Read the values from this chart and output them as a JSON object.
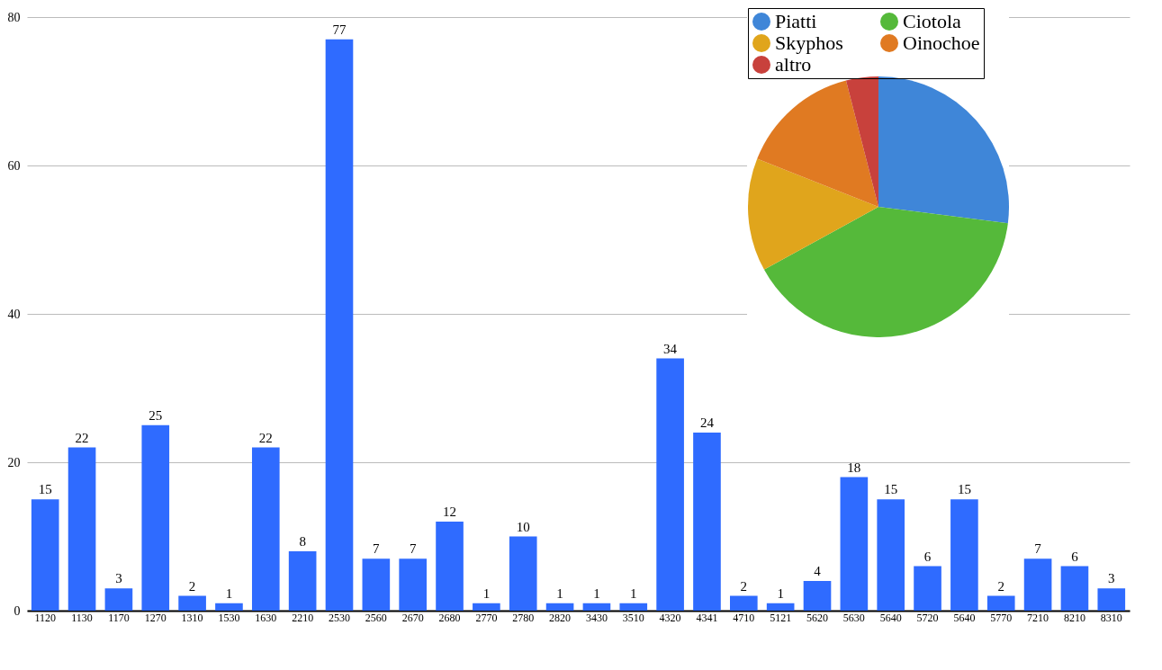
{
  "chart_data": [
    {
      "type": "bar",
      "categories": [
        "1120",
        "1130",
        "1170",
        "1270",
        "1310",
        "1530",
        "1630",
        "2210",
        "2530",
        "2560",
        "2670",
        "2680",
        "2770",
        "2780",
        "2820",
        "3430",
        "3510",
        "4320",
        "4341",
        "4710",
        "5121",
        "5620",
        "5630",
        "5640",
        "5720",
        "5640",
        "5770",
        "7210",
        "8210",
        "8310"
      ],
      "values": [
        15,
        22,
        3,
        25,
        2,
        1,
        22,
        8,
        77,
        7,
        7,
        12,
        1,
        10,
        1,
        1,
        1,
        34,
        24,
        2,
        1,
        4,
        18,
        15,
        6,
        15,
        2,
        7,
        6,
        3
      ],
      "color": "#2f6bff",
      "ylim": [
        0,
        80
      ],
      "yticks": [
        0,
        20,
        40,
        60,
        80
      ],
      "grid": "y",
      "data_labels": true
    },
    {
      "type": "pie",
      "categories": [
        "Piatti",
        "Ciotola",
        "Skyphos",
        "Oinochoe",
        "altro"
      ],
      "values": [
        27,
        40,
        14,
        15,
        4
      ],
      "colors": [
        "#3f86d8",
        "#55b93a",
        "#e0a51c",
        "#e07a22",
        "#c8413c"
      ],
      "legend": "top"
    }
  ]
}
